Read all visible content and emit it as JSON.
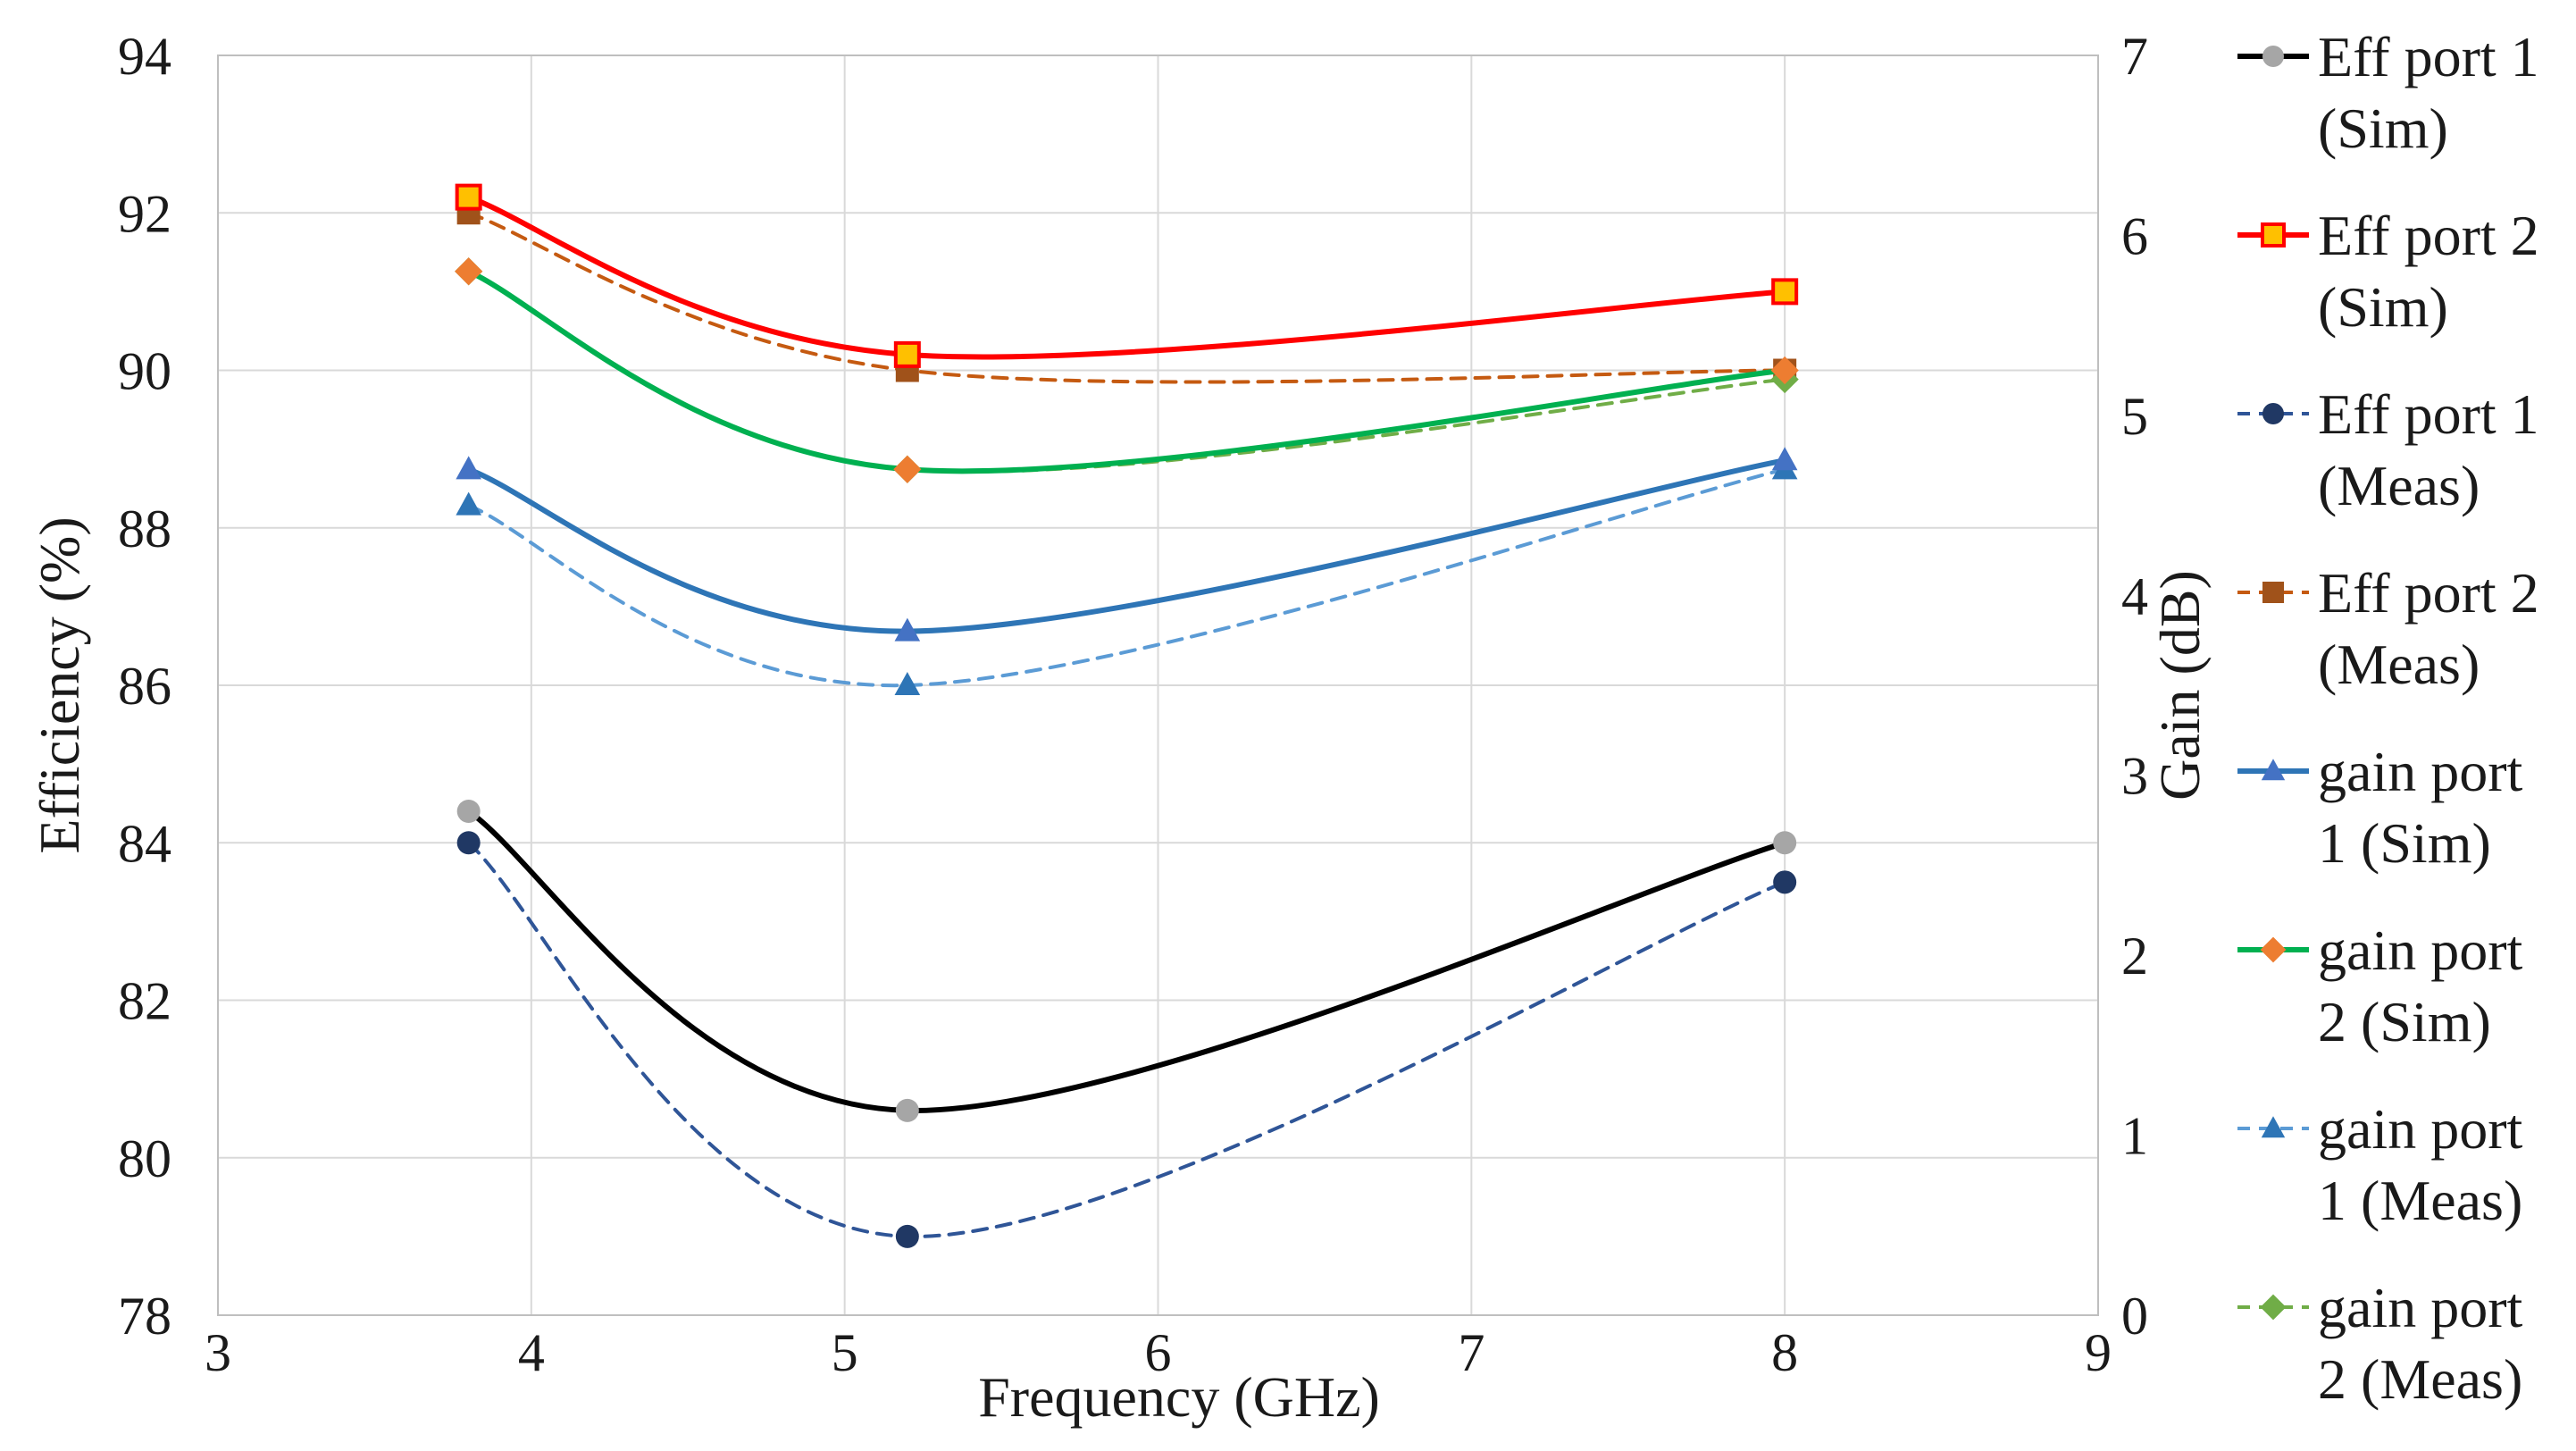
{
  "chart_data": {
    "type": "line",
    "title": "",
    "xlabel": "Frequency (GHz)",
    "ylabel_left": "Efficiency (%)",
    "ylabel_right": "Gain (dB)",
    "xlim": [
      3,
      9
    ],
    "ylim_left": [
      78,
      94
    ],
    "ylim_right": [
      0,
      7
    ],
    "x_ticks": [
      "3",
      "4",
      "5",
      "6",
      "7",
      "8",
      "9"
    ],
    "y_left_ticks": [
      "78",
      "80",
      "82",
      "84",
      "86",
      "88",
      "90",
      "92",
      "94"
    ],
    "y_right_ticks": [
      "0",
      "1",
      "2",
      "3",
      "4",
      "5",
      "6",
      "7"
    ],
    "grid": true,
    "legend_position": "right",
    "x": [
      3.8,
      5.2,
      8
    ],
    "series": [
      {
        "name": "Eff port 1 (Sim)",
        "legend_lines": [
          "Eff port 1",
          "(Sim)"
        ],
        "axis": "left",
        "values": [
          84.4,
          80.6,
          84.0
        ],
        "color": "#000000",
        "dashed": false,
        "marker": "circle",
        "marker_color": "#a6a6a6",
        "marker_stroke": "none"
      },
      {
        "name": "Eff port 2 (Sim)",
        "legend_lines": [
          "Eff port 2",
          "(Sim)"
        ],
        "axis": "left",
        "values": [
          92.2,
          90.2,
          91.0
        ],
        "color": "#ff0000",
        "dashed": false,
        "marker": "square",
        "marker_color": "#ffc000",
        "marker_stroke": "#ff0000"
      },
      {
        "name": "Eff port 1 (Meas)",
        "legend_lines": [
          "Eff port 1",
          "(Meas)"
        ],
        "axis": "left",
        "values": [
          84.0,
          79.0,
          83.5
        ],
        "color": "#2f5597",
        "dashed": true,
        "marker": "circle",
        "marker_color": "#203864",
        "marker_stroke": "none"
      },
      {
        "name": "Eff port 2 (Meas)",
        "legend_lines": [
          "Eff port 2",
          "(Meas)"
        ],
        "axis": "left",
        "values": [
          92.0,
          90.0,
          90.0
        ],
        "color": "#c55a11",
        "dashed": true,
        "marker": "square",
        "marker_color": "#a0521a",
        "marker_stroke": "none"
      },
      {
        "name": "gain port 1 (Sim)",
        "legend_lines": [
          "gain port",
          "1 (Sim)"
        ],
        "axis": "right",
        "values": [
          4.7,
          3.8,
          4.75
        ],
        "color": "#2e75b6",
        "dashed": false,
        "marker": "triangle",
        "marker_color": "#4472c4",
        "marker_stroke": "none"
      },
      {
        "name": "gain port 2 (Sim)",
        "legend_lines": [
          "gain port",
          "2 (Sim)"
        ],
        "axis": "right",
        "values": [
          5.8,
          4.7,
          5.25
        ],
        "color": "#00b050",
        "dashed": false,
        "marker": "diamond",
        "marker_color": "#ed7d31",
        "marker_stroke": "none"
      },
      {
        "name": "gain port 1 (Meas)",
        "legend_lines": [
          "gain port",
          "1 (Meas)"
        ],
        "axis": "right",
        "values": [
          4.5,
          3.5,
          4.7
        ],
        "color": "#5b9bd5",
        "dashed": true,
        "marker": "triangle",
        "marker_color": "#2e75b6",
        "marker_stroke": "none"
      },
      {
        "name": "gain port 2 (Meas)",
        "legend_lines": [
          "gain port",
          "2 (Meas)"
        ],
        "axis": "right",
        "values": [
          5.8,
          4.7,
          5.2
        ],
        "color": "#70ad47",
        "dashed": true,
        "marker": "diamond",
        "marker_color": "#70ad47",
        "marker_stroke": "none"
      }
    ]
  }
}
